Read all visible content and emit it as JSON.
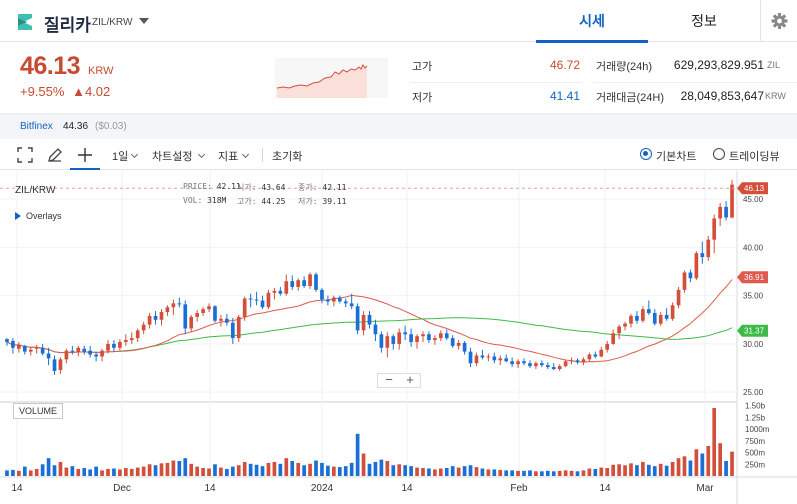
{
  "header": {
    "coin_name": "질리카",
    "pair": "ZIL/KRW",
    "tabs": [
      {
        "label": "시세",
        "active": true
      },
      {
        "label": "정보",
        "active": false
      }
    ]
  },
  "price": {
    "current": "46.13",
    "unit": "KRW",
    "change_percent": "+9.55%",
    "change_amount": "▲4.02"
  },
  "stats": {
    "high_label": "고가",
    "high_value": "46.72",
    "low_label": "저가",
    "low_value": "41.41",
    "volume_label": "거래량(24h)",
    "volume_value": "629,293,829.951",
    "volume_unit": "ZIL",
    "amount_label": "거래대금(24H)",
    "amount_value": "28,049,853,647",
    "amount_unit": "KRW"
  },
  "exchange": {
    "name": "Bitfinex",
    "price": "44.36",
    "change": "($0.03)"
  },
  "toolbar": {
    "interval": "1일",
    "chart_settings": "차트설정",
    "indicators": "지표",
    "reset": "초기화",
    "basic_chart": "기본차트",
    "tradingview": "트레이딩뷰"
  },
  "chart_legend": {
    "title": "ZIL/KRW",
    "overlays": "Overlays",
    "price_key": "PRICE:",
    "price_val": "42.11",
    "open_key": "시가:",
    "open_val": "43.64",
    "close_key": "종가:",
    "close_val": "42.11",
    "vol_key": "VOL:",
    "vol_val": "318M",
    "high_key": "고가:",
    "high_val": "44.25",
    "low_key": "저가:",
    "low_val": "39.11",
    "volume_label": "VOLUME"
  },
  "colors": {
    "up": "#d24f3c",
    "down": "#1a6fd6",
    "ma_short": "#e05a4e",
    "ma_long": "#3dbb49",
    "accent": "#1261c4"
  },
  "chart_data": {
    "type": "candlestick",
    "x_ticks": [
      "14",
      "Dec",
      "14",
      "2024",
      "14",
      "Feb",
      "14",
      "Mar"
    ],
    "y_ticks": [
      "45.00",
      "40.00",
      "35.00",
      "30.00",
      "25.00"
    ],
    "y_range": [
      24.5,
      47.5
    ],
    "volume_ticks": [
      "1.50b",
      "1.25b",
      "1000m",
      "750m",
      "500m",
      "250m"
    ],
    "volume_range": [
      0,
      1600
    ],
    "price_tags": [
      {
        "value": 46.13,
        "label": "46.13",
        "color": "#d24f3c"
      },
      {
        "value": 36.91,
        "label": "36.91",
        "color": "#e05a4e"
      },
      {
        "value": 31.37,
        "label": "31.37",
        "color": "#3dbb49"
      }
    ],
    "candles": [
      [
        30.5,
        30.6,
        29.8,
        30.2,
        120
      ],
      [
        30.3,
        30.6,
        29.0,
        29.6,
        130
      ],
      [
        29.5,
        30.2,
        29.1,
        29.9,
        110
      ],
      [
        29.8,
        29.9,
        28.9,
        29.2,
        200
      ],
      [
        29.2,
        29.7,
        28.8,
        29.4,
        120
      ],
      [
        29.5,
        29.9,
        29.0,
        29.6,
        150
      ],
      [
        29.6,
        30.0,
        28.8,
        29.0,
        250
      ],
      [
        29.0,
        29.6,
        27.8,
        28.5,
        380
      ],
      [
        28.4,
        28.8,
        26.8,
        27.2,
        230
      ],
      [
        27.3,
        28.6,
        26.9,
        28.4,
        300
      ],
      [
        28.4,
        29.5,
        28.0,
        29.3,
        180
      ],
      [
        29.3,
        29.8,
        28.9,
        29.2,
        210
      ],
      [
        29.2,
        29.8,
        28.7,
        29.6,
        150
      ],
      [
        29.5,
        29.8,
        28.9,
        29.2,
        170
      ],
      [
        29.3,
        29.8,
        28.6,
        28.9,
        140
      ],
      [
        28.9,
        29.2,
        28.2,
        28.7,
        200
      ],
      [
        28.7,
        29.5,
        28.2,
        29.3,
        120
      ],
      [
        29.3,
        30.4,
        29.0,
        30.0,
        150
      ],
      [
        30.0,
        30.4,
        29.2,
        29.6,
        160
      ],
      [
        29.6,
        30.5,
        29.3,
        30.2,
        140
      ],
      [
        30.2,
        31.0,
        29.8,
        30.4,
        170
      ],
      [
        30.4,
        31.2,
        30.0,
        30.6,
        150
      ],
      [
        30.6,
        31.6,
        30.2,
        31.4,
        180
      ],
      [
        31.4,
        32.3,
        31.0,
        32.0,
        200
      ],
      [
        32.0,
        33.2,
        31.6,
        32.9,
        250
      ],
      [
        32.9,
        33.4,
        32.0,
        32.5,
        230
      ],
      [
        32.5,
        33.6,
        31.9,
        33.3,
        270
      ],
      [
        33.3,
        34.0,
        32.9,
        33.8,
        280
      ],
      [
        33.8,
        34.6,
        33.0,
        34.2,
        330
      ],
      [
        34.2,
        34.8,
        33.8,
        34.1,
        320
      ],
      [
        34.1,
        34.5,
        31.0,
        31.6,
        380
      ],
      [
        31.6,
        33.0,
        31.2,
        32.8,
        260
      ],
      [
        32.8,
        33.5,
        32.3,
        33.2,
        200
      ],
      [
        33.2,
        33.8,
        32.9,
        33.6,
        170
      ],
      [
        33.6,
        34.2,
        33.3,
        33.9,
        160
      ],
      [
        33.9,
        34.0,
        32.2,
        32.4,
        250
      ],
      [
        32.4,
        33.0,
        31.8,
        32.6,
        180
      ],
      [
        32.6,
        33.1,
        31.9,
        32.2,
        150
      ],
      [
        32.2,
        32.7,
        30.0,
        30.6,
        200
      ],
      [
        30.6,
        33.0,
        30.2,
        32.8,
        230
      ],
      [
        32.8,
        34.9,
        32.4,
        34.7,
        300
      ],
      [
        34.7,
        35.2,
        33.8,
        34.6,
        260
      ],
      [
        34.6,
        35.4,
        34.0,
        34.5,
        240
      ],
      [
        34.5,
        35.0,
        33.6,
        33.8,
        210
      ],
      [
        33.8,
        35.6,
        33.6,
        35.3,
        280
      ],
      [
        35.3,
        35.8,
        34.6,
        35.5,
        300
      ],
      [
        35.5,
        35.9,
        35.0,
        35.2,
        260
      ],
      [
        35.2,
        37.2,
        35.0,
        36.5,
        380
      ],
      [
        36.5,
        37.1,
        35.6,
        35.9,
        320
      ],
      [
        35.9,
        36.8,
        35.5,
        36.6,
        280
      ],
      [
        36.6,
        37.0,
        35.8,
        36.0,
        230
      ],
      [
        36.0,
        37.4,
        35.7,
        37.2,
        260
      ],
      [
        37.2,
        37.4,
        35.4,
        35.6,
        330
      ],
      [
        35.6,
        35.8,
        34.2,
        34.6,
        280
      ],
      [
        34.6,
        35.0,
        34.0,
        34.4,
        220
      ],
      [
        34.4,
        35.0,
        33.9,
        34.8,
        200
      ],
      [
        34.8,
        35.0,
        34.2,
        34.4,
        190
      ],
      [
        34.4,
        34.7,
        33.8,
        34.2,
        210
      ],
      [
        34.2,
        35.2,
        33.6,
        33.9,
        280
      ],
      [
        33.9,
        34.2,
        31.0,
        31.4,
        900
      ],
      [
        31.4,
        33.4,
        30.9,
        33.0,
        480
      ],
      [
        33.0,
        33.4,
        31.6,
        32.0,
        260
      ],
      [
        32.0,
        32.5,
        30.3,
        31.0,
        300
      ],
      [
        31.0,
        31.3,
        29.1,
        29.6,
        350
      ],
      [
        29.6,
        31.2,
        28.6,
        30.8,
        320
      ],
      [
        30.8,
        31.0,
        29.4,
        30.0,
        230
      ],
      [
        30.0,
        31.6,
        29.4,
        31.2,
        250
      ],
      [
        31.2,
        31.9,
        30.4,
        31.0,
        230
      ],
      [
        31.0,
        31.6,
        29.7,
        30.2,
        210
      ],
      [
        30.2,
        31.0,
        29.5,
        30.8,
        180
      ],
      [
        30.8,
        31.3,
        30.2,
        31.0,
        170
      ],
      [
        31.0,
        31.3,
        30.1,
        30.4,
        160
      ],
      [
        30.4,
        30.9,
        29.9,
        30.6,
        140
      ],
      [
        30.6,
        31.4,
        30.3,
        31.1,
        160
      ],
      [
        31.1,
        31.5,
        30.4,
        30.6,
        170
      ],
      [
        30.6,
        30.9,
        29.6,
        29.8,
        210
      ],
      [
        29.8,
        30.4,
        29.4,
        30.1,
        180
      ],
      [
        30.1,
        30.3,
        28.9,
        29.2,
        210
      ],
      [
        29.2,
        29.6,
        27.6,
        28.0,
        230
      ],
      [
        28.0,
        29.1,
        27.7,
        28.8,
        190
      ],
      [
        28.8,
        29.4,
        28.4,
        28.6,
        160
      ],
      [
        28.6,
        29.0,
        28.2,
        28.7,
        140
      ],
      [
        28.7,
        29.1,
        28.0,
        28.3,
        140
      ],
      [
        28.3,
        28.8,
        27.8,
        28.5,
        130
      ],
      [
        28.5,
        28.9,
        28.1,
        28.2,
        120
      ],
      [
        28.2,
        28.6,
        27.6,
        27.9,
        120
      ],
      [
        27.9,
        28.4,
        27.5,
        28.2,
        110
      ],
      [
        28.2,
        28.5,
        27.8,
        28.0,
        110
      ],
      [
        28.0,
        28.3,
        27.5,
        27.7,
        120
      ],
      [
        27.7,
        28.2,
        27.4,
        28.0,
        100
      ],
      [
        28.0,
        28.3,
        27.6,
        27.8,
        100
      ],
      [
        27.8,
        28.1,
        27.4,
        27.6,
        110
      ],
      [
        27.6,
        28.0,
        27.3,
        27.4,
        100
      ],
      [
        27.4,
        27.9,
        27.2,
        27.7,
        110
      ],
      [
        27.7,
        28.3,
        27.6,
        28.2,
        120
      ],
      [
        28.2,
        28.6,
        27.9,
        28.3,
        110
      ],
      [
        28.3,
        28.5,
        27.9,
        28.1,
        100
      ],
      [
        28.1,
        28.6,
        27.8,
        28.4,
        120
      ],
      [
        28.4,
        29.1,
        28.2,
        28.9,
        160
      ],
      [
        28.9,
        29.2,
        28.5,
        28.7,
        150
      ],
      [
        28.7,
        29.7,
        28.6,
        29.4,
        180
      ],
      [
        29.4,
        30.3,
        29.1,
        30.0,
        170
      ],
      [
        30.0,
        31.5,
        29.9,
        31.1,
        240
      ],
      [
        31.1,
        32.0,
        30.5,
        31.8,
        250
      ],
      [
        31.8,
        32.3,
        31.4,
        32.1,
        230
      ],
      [
        32.1,
        33.1,
        31.7,
        32.9,
        270
      ],
      [
        32.9,
        33.4,
        32.1,
        32.4,
        230
      ],
      [
        32.4,
        33.9,
        32.2,
        33.6,
        300
      ],
      [
        33.6,
        34.5,
        33.0,
        33.2,
        240
      ],
      [
        33.2,
        33.6,
        31.9,
        32.1,
        210
      ],
      [
        32.1,
        33.3,
        31.9,
        33.0,
        260
      ],
      [
        33.0,
        33.7,
        32.4,
        32.6,
        220
      ],
      [
        32.6,
        34.3,
        32.4,
        34.0,
        300
      ],
      [
        34.0,
        35.9,
        33.7,
        35.6,
        380
      ],
      [
        35.6,
        37.6,
        35.3,
        37.4,
        420
      ],
      [
        37.4,
        37.7,
        36.4,
        36.8,
        330
      ],
      [
        36.8,
        39.6,
        36.6,
        39.4,
        570
      ],
      [
        39.4,
        40.6,
        38.3,
        39.0,
        480
      ],
      [
        39.0,
        41.2,
        38.6,
        40.8,
        640
      ],
      [
        40.8,
        43.4,
        39.4,
        43.0,
        1450
      ],
      [
        43.0,
        44.6,
        42.2,
        44.2,
        700
      ],
      [
        44.2,
        44.8,
        42.8,
        43.1,
        320
      ],
      [
        43.1,
        47.0,
        43.0,
        46.5,
        520
      ]
    ]
  }
}
